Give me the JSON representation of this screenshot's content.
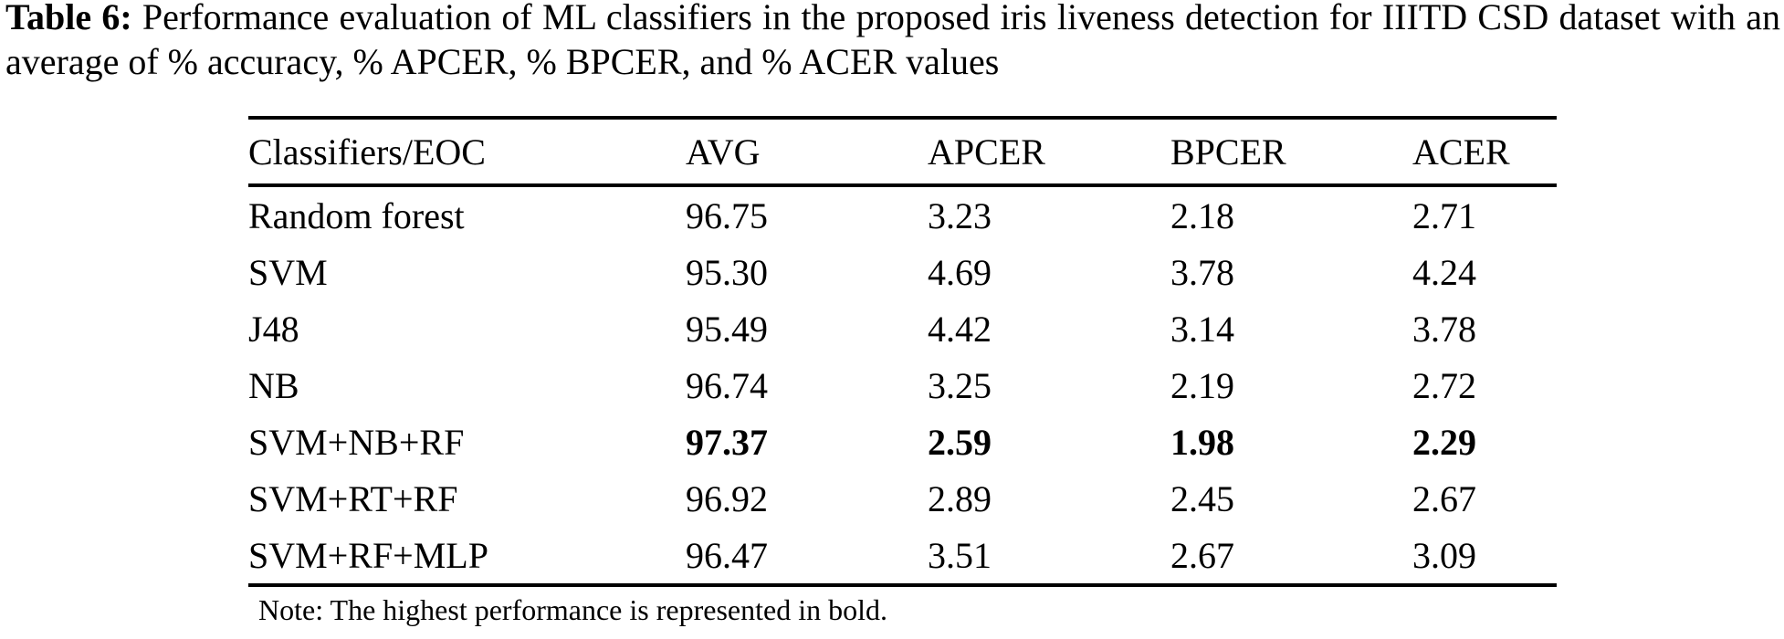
{
  "caption": {
    "label": "Table 6:",
    "text": "Performance evaluation of ML classifiers in the proposed iris liveness detection for IIITD CSD dataset with an average of % accuracy, % APCER, % BPCER, and % ACER values"
  },
  "table": {
    "columns": [
      "Classifiers/EOC",
      "AVG",
      "APCER",
      "BPCER",
      "ACER"
    ],
    "rows": [
      {
        "cells": [
          "Random forest",
          "96.75",
          "3.23",
          "2.18",
          "2.71"
        ],
        "bold": false
      },
      {
        "cells": [
          "SVM",
          "95.30",
          "4.69",
          "3.78",
          "4.24"
        ],
        "bold": false
      },
      {
        "cells": [
          "J48",
          "95.49",
          "4.42",
          "3.14",
          "3.78"
        ],
        "bold": false
      },
      {
        "cells": [
          "NB",
          "96.74",
          "3.25",
          "2.19",
          "2.72"
        ],
        "bold": false
      },
      {
        "cells": [
          "SVM+NB+RF",
          "97.37",
          "2.59",
          "1.98",
          "2.29"
        ],
        "bold": true
      },
      {
        "cells": [
          "SVM+RT+RF",
          "96.92",
          "2.89",
          "2.45",
          "2.67"
        ],
        "bold": false
      },
      {
        "cells": [
          "SVM+RF+MLP",
          "96.47",
          "3.51",
          "2.67",
          "3.09"
        ],
        "bold": false
      }
    ]
  },
  "note": "Note: The highest performance is represented in bold.",
  "colors": {
    "text": "#000000",
    "background": "#ffffff",
    "rule": "#000000"
  }
}
